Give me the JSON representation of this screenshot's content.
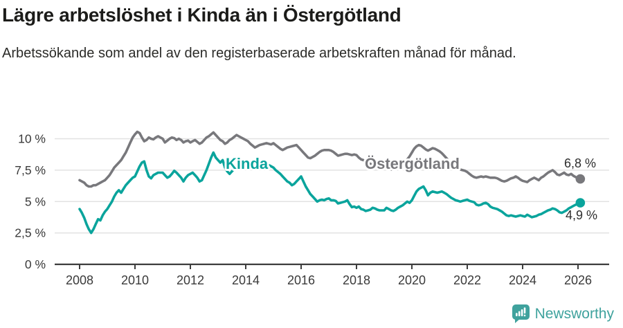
{
  "header": {
    "title": "Lägre arbetslöshet i Kinda än i Östergötland",
    "subtitle": "Arbetssökande som andel av den registerbaserade arbetskraften månad för månad."
  },
  "footer": {
    "brand": "Newsworthy",
    "brand_color": "#3FA29D",
    "logo_icon": "newsworthy-speech-bubble-bar-chart-icon"
  },
  "chart_data": {
    "type": "line",
    "title": "Lägre arbetslöshet i Kinda än i Östergötland",
    "xlabel": "",
    "ylabel": "",
    "grid": "horizontal",
    "legend_position": "inline-labels",
    "x_axis": {
      "frequency": "monthly",
      "start": "2008-01",
      "end": "2026-02",
      "tick_labels": [
        "2008",
        "2010",
        "2012",
        "2014",
        "2016",
        "2018",
        "2020",
        "2022",
        "2024",
        "2026"
      ]
    },
    "y_axis": {
      "unit": "%",
      "tick_values": [
        0,
        2.5,
        5,
        7.5,
        10
      ],
      "tick_labels": [
        "0 %",
        "2,5 %",
        "5 %",
        "7,5 %",
        "10 %"
      ],
      "range": [
        0,
        10.8
      ]
    },
    "series": [
      {
        "name": "Östergötland",
        "color": "#78787C",
        "end_label": "6,8 %",
        "end_value": 6.8,
        "values": [
          6.7,
          6.6,
          6.5,
          6.3,
          6.2,
          6.2,
          6.3,
          6.3,
          6.4,
          6.5,
          6.6,
          6.7,
          6.9,
          7.1,
          7.4,
          7.7,
          7.9,
          8.1,
          8.3,
          8.6,
          8.9,
          9.3,
          9.7,
          10.1,
          10.35,
          10.55,
          10.45,
          10.1,
          9.8,
          9.9,
          10.1,
          10.0,
          9.95,
          10.1,
          10.2,
          10.1,
          10.0,
          9.7,
          9.85,
          10.0,
          10.1,
          10.05,
          9.9,
          10.0,
          9.9,
          9.7,
          9.8,
          9.85,
          9.7,
          9.8,
          9.9,
          9.75,
          9.6,
          9.7,
          9.9,
          10.1,
          10.2,
          10.35,
          10.5,
          10.3,
          10.1,
          9.9,
          9.8,
          9.6,
          9.7,
          9.9,
          10.0,
          10.15,
          10.3,
          10.2,
          10.1,
          10.0,
          9.9,
          9.8,
          9.6,
          9.45,
          9.3,
          9.4,
          9.5,
          9.55,
          9.6,
          9.65,
          9.6,
          9.55,
          9.65,
          9.5,
          9.35,
          9.2,
          9.1,
          9.2,
          9.3,
          9.35,
          9.4,
          9.45,
          9.5,
          9.3,
          9.1,
          8.9,
          8.7,
          8.5,
          8.45,
          8.55,
          8.65,
          8.8,
          8.95,
          9.05,
          9.1,
          9.1,
          9.1,
          9.05,
          8.95,
          8.8,
          8.65,
          8.7,
          8.75,
          8.8,
          8.8,
          8.75,
          8.7,
          8.75,
          8.7,
          8.5,
          8.35,
          8.3,
          8.2,
          8.1,
          8.0,
          7.95,
          7.9,
          7.85,
          7.8,
          7.75,
          7.7,
          7.65,
          7.6,
          7.55,
          7.6,
          7.7,
          7.75,
          7.85,
          8.0,
          8.15,
          8.35,
          8.6,
          8.9,
          9.2,
          9.4,
          9.5,
          9.45,
          9.3,
          9.15,
          9.05,
          9.15,
          9.25,
          9.2,
          9.1,
          9.0,
          8.85,
          8.65,
          8.45,
          8.25,
          8.1,
          7.9,
          7.75,
          7.6,
          7.55,
          7.5,
          7.45,
          7.35,
          7.2,
          7.05,
          6.95,
          6.9,
          6.95,
          7.0,
          6.95,
          7.0,
          6.95,
          6.9,
          6.9,
          6.9,
          6.85,
          6.75,
          6.65,
          6.6,
          6.65,
          6.75,
          6.85,
          6.9,
          7.0,
          6.9,
          6.75,
          6.65,
          6.6,
          6.55,
          6.7,
          6.8,
          6.9,
          6.8,
          6.7,
          6.9,
          7.0,
          7.15,
          7.3,
          7.4,
          7.5,
          7.35,
          7.15,
          7.1,
          7.2,
          7.3,
          7.15,
          7.1,
          7.2,
          7.05,
          6.95,
          6.85,
          6.8
        ]
      },
      {
        "name": "Kinda",
        "color": "#0AA49C",
        "end_label": "4,9 %",
        "end_value": 4.9,
        "values": [
          4.4,
          4.1,
          3.7,
          3.2,
          2.8,
          2.5,
          2.8,
          3.2,
          3.6,
          3.5,
          3.9,
          4.2,
          4.4,
          4.7,
          5.0,
          5.4,
          5.7,
          5.9,
          5.7,
          6.0,
          6.3,
          6.5,
          6.7,
          6.9,
          7.0,
          7.4,
          7.8,
          8.1,
          8.2,
          7.5,
          7.0,
          6.85,
          7.1,
          7.2,
          7.3,
          7.3,
          7.3,
          7.1,
          6.9,
          7.0,
          7.2,
          7.45,
          7.3,
          7.1,
          6.9,
          6.6,
          6.9,
          7.1,
          7.2,
          7.3,
          7.1,
          6.9,
          6.6,
          6.7,
          7.1,
          7.5,
          8.0,
          8.5,
          8.9,
          8.5,
          8.3,
          8.1,
          8.3,
          7.7,
          7.4,
          7.2,
          7.4,
          7.6,
          7.7,
          7.8,
          7.9,
          7.9,
          7.8,
          7.9,
          8.0,
          8.1,
          8.05,
          7.95,
          7.9,
          8.0,
          8.05,
          8.0,
          7.9,
          7.8,
          7.7,
          7.5,
          7.35,
          7.2,
          7.0,
          6.8,
          6.6,
          6.5,
          6.3,
          6.4,
          6.6,
          6.8,
          7.0,
          6.6,
          6.2,
          5.9,
          5.6,
          5.4,
          5.2,
          5.0,
          5.1,
          5.15,
          5.1,
          5.2,
          5.25,
          5.1,
          5.1,
          5.05,
          4.85,
          4.9,
          4.95,
          5.0,
          5.1,
          4.8,
          4.55,
          4.6,
          4.5,
          4.6,
          4.4,
          4.35,
          4.25,
          4.3,
          4.35,
          4.5,
          4.45,
          4.35,
          4.3,
          4.3,
          4.3,
          4.5,
          4.4,
          4.3,
          4.25,
          4.35,
          4.5,
          4.6,
          4.7,
          4.85,
          5.0,
          4.9,
          5.1,
          5.45,
          5.8,
          6.0,
          6.1,
          6.2,
          5.9,
          5.5,
          5.7,
          5.8,
          5.75,
          5.7,
          5.75,
          5.8,
          5.7,
          5.6,
          5.45,
          5.3,
          5.2,
          5.1,
          5.05,
          5.0,
          5.05,
          5.1,
          5.15,
          5.05,
          5.0,
          4.95,
          4.75,
          4.7,
          4.75,
          4.85,
          4.9,
          4.8,
          4.6,
          4.5,
          4.45,
          4.4,
          4.3,
          4.2,
          4.05,
          3.9,
          3.85,
          3.9,
          3.85,
          3.8,
          3.85,
          3.9,
          3.85,
          3.8,
          3.95,
          3.85,
          3.75,
          3.8,
          3.85,
          3.95,
          4.0,
          4.1,
          4.2,
          4.3,
          4.35,
          4.45,
          4.4,
          4.3,
          4.15,
          4.1,
          4.2,
          4.3,
          4.45,
          4.55,
          4.65,
          4.75,
          4.8,
          4.9
        ]
      }
    ]
  }
}
